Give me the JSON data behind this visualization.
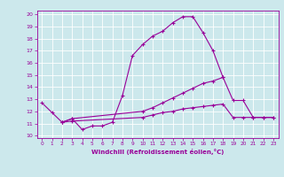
{
  "xlabel": "Windchill (Refroidissement éolien,°C)",
  "background_color": "#cce8ec",
  "grid_color": "#ffffff",
  "line_color": "#990099",
  "x_ticks": [
    0,
    1,
    2,
    3,
    4,
    5,
    6,
    7,
    8,
    9,
    10,
    11,
    12,
    13,
    14,
    15,
    16,
    17,
    18,
    19,
    20,
    21,
    22,
    23
  ],
  "y_ticks": [
    10,
    11,
    12,
    13,
    14,
    15,
    16,
    17,
    18,
    19,
    20
  ],
  "xlim": [
    -0.5,
    23.5
  ],
  "ylim": [
    9.8,
    20.3
  ],
  "curve1_x": [
    0,
    1,
    2,
    3,
    4,
    5,
    6,
    7,
    8,
    9,
    10,
    11,
    12,
    13,
    14,
    15,
    16,
    17,
    18
  ],
  "curve1_y": [
    12.7,
    11.9,
    11.1,
    11.4,
    10.5,
    10.8,
    10.8,
    11.1,
    13.3,
    16.6,
    17.5,
    18.2,
    18.6,
    19.3,
    19.8,
    19.8,
    18.5,
    17.0,
    14.8
  ],
  "curve2_x": [
    2,
    3,
    10,
    11,
    12,
    13,
    14,
    15,
    16,
    17,
    18,
    19,
    20,
    21,
    22,
    23
  ],
  "curve2_y": [
    11.1,
    11.4,
    12.0,
    12.3,
    12.7,
    13.1,
    13.5,
    13.9,
    14.3,
    14.5,
    14.8,
    12.9,
    12.9,
    11.5,
    11.5,
    11.5
  ],
  "curve3_x": [
    2,
    3,
    10,
    11,
    12,
    13,
    14,
    15,
    16,
    17,
    18,
    19,
    20,
    21,
    22,
    23
  ],
  "curve3_y": [
    11.1,
    11.2,
    11.5,
    11.7,
    11.9,
    12.0,
    12.2,
    12.3,
    12.4,
    12.5,
    12.6,
    11.5,
    11.5,
    11.5,
    11.5,
    11.5
  ]
}
